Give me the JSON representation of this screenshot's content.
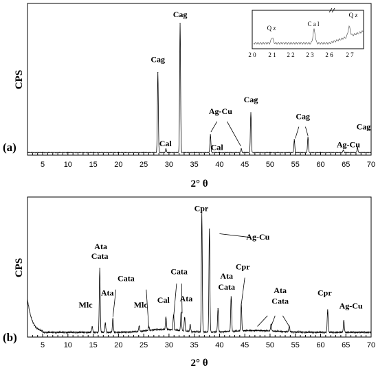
{
  "chart_data": [
    {
      "type": "line",
      "panel_label": "(a)",
      "xlabel": "2° θ",
      "ylabel": "CPS",
      "xlim": [
        2,
        70
      ],
      "xticks": [
        5,
        10,
        15,
        20,
        25,
        30,
        35,
        40,
        45,
        50,
        55,
        60,
        65,
        70
      ],
      "baseline": 2,
      "peaks": [
        {
          "x": 27.8,
          "y": 62
        },
        {
          "x": 29.4,
          "y": 3
        },
        {
          "x": 32.2,
          "y": 100
        },
        {
          "x": 38.2,
          "y": 14
        },
        {
          "x": 44.3,
          "y": 3
        },
        {
          "x": 46.2,
          "y": 31
        },
        {
          "x": 54.8,
          "y": 10
        },
        {
          "x": 57.5,
          "y": 12
        },
        {
          "x": 64.5,
          "y": 2
        },
        {
          "x": 67.3,
          "y": 4
        }
      ],
      "annotations": [
        {
          "text": "Cag",
          "x": 27.8,
          "y": 72
        },
        {
          "text": "Cag",
          "x": 32.2,
          "y": 107
        },
        {
          "text": "Cal",
          "x": 29.3,
          "y": 7
        },
        {
          "text": "Ag-Cu",
          "x": 40.2,
          "y": 32
        },
        {
          "text": "Cal",
          "x": 39.5,
          "y": 4
        },
        {
          "text": "Cag",
          "x": 46.2,
          "y": 41
        },
        {
          "text": "Cag",
          "x": 56.5,
          "y": 28
        },
        {
          "text": "Ag-Cu",
          "x": 65.5,
          "y": 6
        },
        {
          "text": "Cag",
          "x": 68.5,
          "y": 20
        }
      ],
      "inset": {
        "xticks": [
          "2 0",
          "2 1",
          "2 2",
          "2 3",
          "2 6",
          "2 7"
        ],
        "labels": [
          "Q z",
          "C a l",
          "Q z"
        ]
      }
    },
    {
      "type": "line",
      "panel_label": "(b)",
      "xlabel": "2° θ",
      "ylabel": "CPS",
      "xlim": [
        2,
        70
      ],
      "xticks": [
        5,
        10,
        15,
        20,
        25,
        30,
        35,
        40,
        45,
        50,
        55,
        60,
        65,
        70
      ],
      "baseline": 4,
      "peaks": [
        {
          "x": 14.8,
          "y": 5
        },
        {
          "x": 16.3,
          "y": 54
        },
        {
          "x": 17.4,
          "y": 8
        },
        {
          "x": 18.9,
          "y": 12
        },
        {
          "x": 24.1,
          "y": 5
        },
        {
          "x": 26.0,
          "y": 4
        },
        {
          "x": 29.4,
          "y": 11
        },
        {
          "x": 30.9,
          "y": 13
        },
        {
          "x": 32.4,
          "y": 16
        },
        {
          "x": 33.1,
          "y": 12
        },
        {
          "x": 34.2,
          "y": 6
        },
        {
          "x": 36.5,
          "y": 100
        },
        {
          "x": 38.0,
          "y": 87
        },
        {
          "x": 39.7,
          "y": 20
        },
        {
          "x": 42.3,
          "y": 30
        },
        {
          "x": 44.3,
          "y": 23
        },
        {
          "x": 50.2,
          "y": 6
        },
        {
          "x": 53.8,
          "y": 5
        },
        {
          "x": 61.4,
          "y": 19
        },
        {
          "x": 64.6,
          "y": 10
        }
      ],
      "annotations": [
        {
          "text": "Mlc",
          "x": 13.5,
          "y": 25
        },
        {
          "text": "Ata",
          "x": 16.5,
          "y": 74
        },
        {
          "text": "Cata",
          "x": 16.3,
          "y": 66
        },
        {
          "text": "Ata",
          "x": 17.8,
          "y": 35
        },
        {
          "text": "Cata",
          "x": 21.5,
          "y": 47
        },
        {
          "text": "Mlc",
          "x": 24.4,
          "y": 25
        },
        {
          "text": "Cal",
          "x": 28.9,
          "y": 29
        },
        {
          "text": "Cata",
          "x": 32.0,
          "y": 53
        },
        {
          "text": "Ata",
          "x": 33.4,
          "y": 30
        },
        {
          "text": "Cpr",
          "x": 36.4,
          "y": 106
        },
        {
          "text": "Ata",
          "x": 41.4,
          "y": 49
        },
        {
          "text": "Cata",
          "x": 41.4,
          "y": 40
        },
        {
          "text": "Cpr",
          "x": 44.6,
          "y": 57
        },
        {
          "text": "Ag-Cu",
          "x": 47.6,
          "y": 82
        },
        {
          "text": "Ata",
          "x": 52.0,
          "y": 37
        },
        {
          "text": "Cata",
          "x": 52.0,
          "y": 28
        },
        {
          "text": "Cpr",
          "x": 60.8,
          "y": 35
        },
        {
          "text": "Ag-Cu",
          "x": 66.0,
          "y": 24
        }
      ]
    }
  ]
}
